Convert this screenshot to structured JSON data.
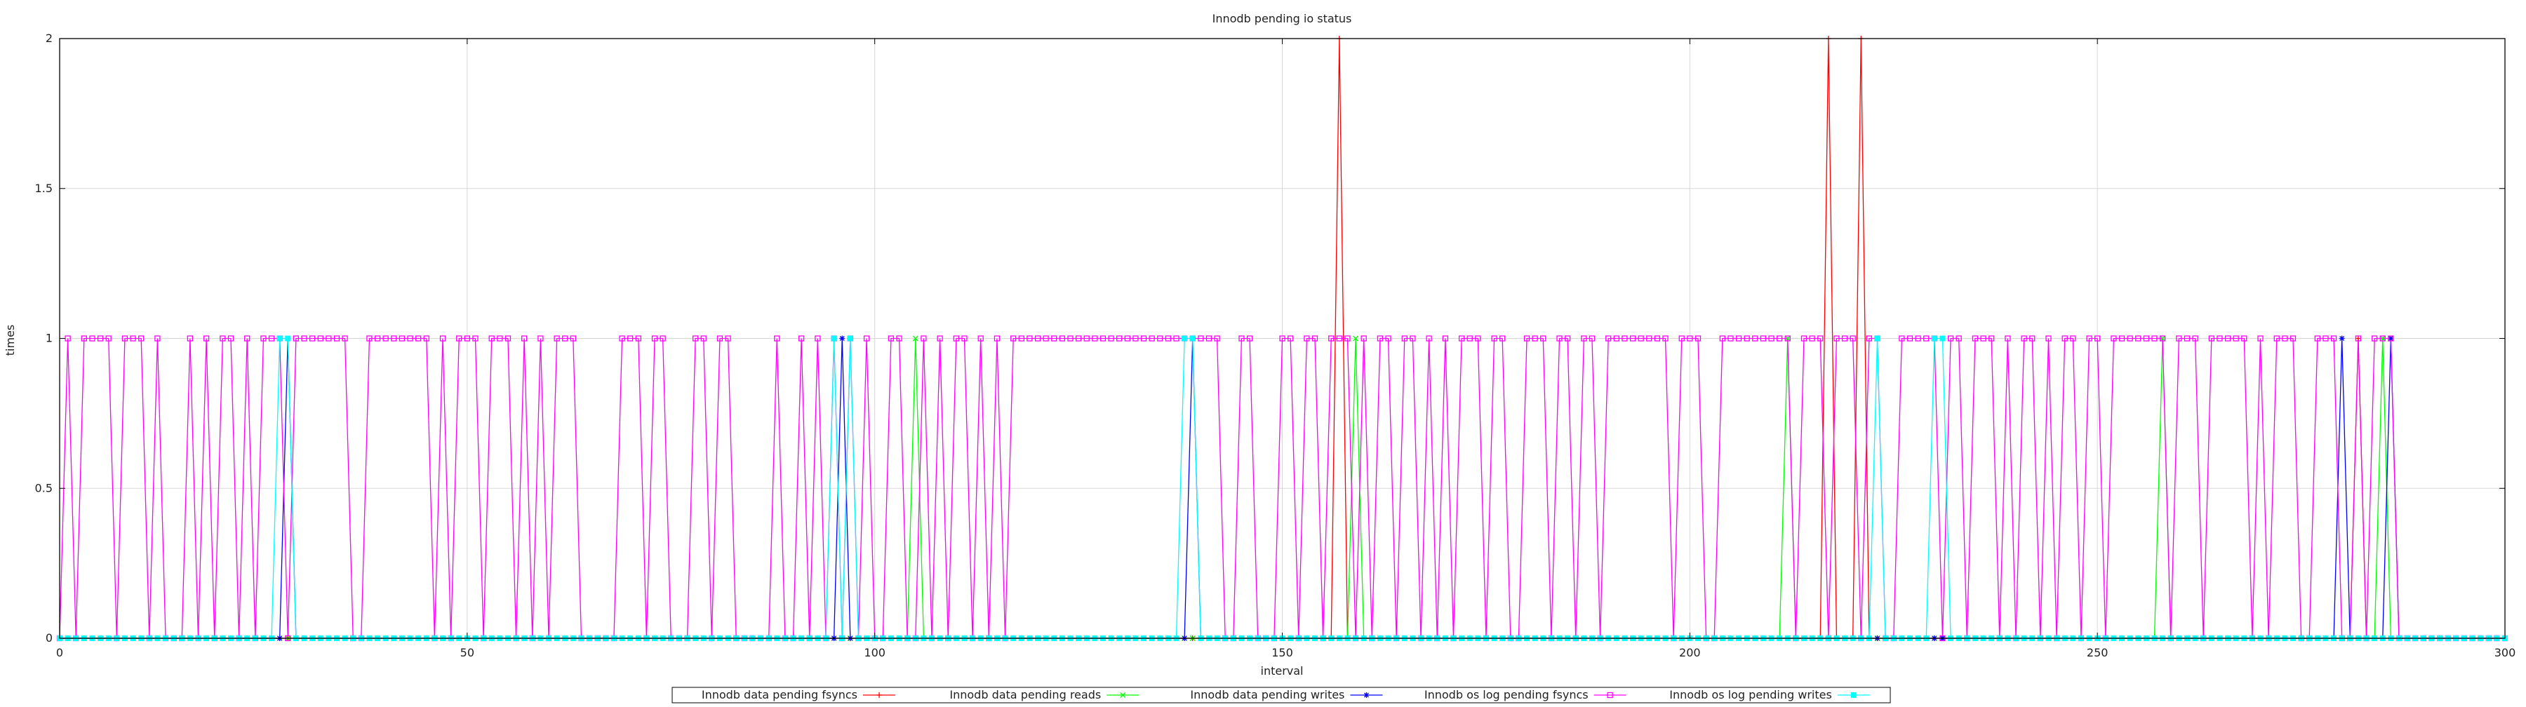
{
  "chart_data": {
    "type": "line",
    "title": "Innodb pending io status",
    "xlabel": "interval",
    "ylabel": "times",
    "xlim": [
      0,
      300
    ],
    "ylim": [
      0,
      2
    ],
    "xticks": [
      0,
      50,
      100,
      150,
      200,
      250,
      300
    ],
    "yticks": [
      0,
      0.5,
      1,
      1.5,
      2
    ],
    "xtick_labels": [
      "0",
      "50",
      "100",
      "150",
      "200",
      "250",
      "300"
    ],
    "ytick_labels": [
      "0",
      "0.5",
      "1",
      "1.5",
      "2"
    ],
    "grid": true,
    "legend_position": "bottom-center",
    "series": [
      {
        "name": "Innodb data pending fsyncs",
        "color": "#ff0000",
        "marker": "plus",
        "points": [
          [
            157,
            2
          ],
          [
            217,
            2
          ],
          [
            221,
            2
          ],
          [
            282,
            1
          ]
        ]
      },
      {
        "name": "Innodb data pending reads",
        "color": "#00ff00",
        "marker": "cross",
        "points": [
          [
            105,
            1
          ],
          [
            159,
            1
          ],
          [
            212,
            1
          ],
          [
            258,
            1
          ],
          [
            285,
            1
          ]
        ]
      },
      {
        "name": "Innodb data pending writes",
        "color": "#0000ff",
        "marker": "star",
        "points": [
          [
            28,
            1
          ],
          [
            96,
            1
          ],
          [
            139,
            1
          ],
          [
            280,
            1
          ],
          [
            286,
            1
          ]
        ]
      },
      {
        "name": "Innodb os log pending fsyncs",
        "color": "#ff00ff",
        "marker": "box",
        "ones": [
          1,
          3,
          4,
          5,
          6,
          8,
          9,
          10,
          12,
          16,
          18,
          20,
          21,
          23,
          25,
          26,
          27,
          29,
          30,
          31,
          32,
          33,
          34,
          35,
          38,
          39,
          40,
          41,
          42,
          43,
          44,
          45,
          47,
          49,
          50,
          51,
          53,
          54,
          55,
          57,
          59,
          61,
          62,
          63,
          69,
          70,
          71,
          73,
          74,
          78,
          79,
          81,
          82,
          88,
          91,
          93,
          95,
          97,
          99,
          102,
          103,
          106,
          108,
          110,
          111,
          113,
          115,
          117,
          118,
          119,
          120,
          121,
          122,
          123,
          124,
          125,
          126,
          127,
          128,
          129,
          130,
          131,
          132,
          133,
          134,
          135,
          136,
          137,
          138,
          139,
          140,
          141,
          142,
          145,
          146,
          150,
          151,
          153,
          154,
          156,
          157,
          158,
          160,
          162,
          163,
          165,
          166,
          168,
          170,
          172,
          173,
          174,
          176,
          177,
          180,
          181,
          182,
          184,
          185,
          187,
          188,
          190,
          191,
          192,
          193,
          194,
          195,
          196,
          197,
          199,
          200,
          201,
          204,
          205,
          206,
          207,
          208,
          209,
          210,
          211,
          212,
          214,
          215,
          216,
          218,
          219,
          220,
          222,
          223,
          226,
          227,
          228,
          229,
          230,
          232,
          233,
          235,
          236,
          237,
          239,
          241,
          242,
          244,
          246,
          247,
          249,
          250,
          252,
          253,
          254,
          255,
          256,
          257,
          258,
          260,
          261,
          262,
          264,
          265,
          266,
          267,
          268,
          270,
          272,
          273,
          274,
          277,
          278,
          279,
          282,
          284,
          285,
          286
        ]
      },
      {
        "name": "Innodb os log pending writes",
        "color": "#00ffff",
        "marker": "filled-box",
        "points": [
          [
            27,
            1
          ],
          [
            28,
            1
          ],
          [
            95,
            1
          ],
          [
            97,
            1
          ],
          [
            138,
            1
          ],
          [
            139,
            1
          ],
          [
            223,
            1
          ],
          [
            230,
            1
          ],
          [
            231,
            1
          ]
        ]
      }
    ]
  }
}
